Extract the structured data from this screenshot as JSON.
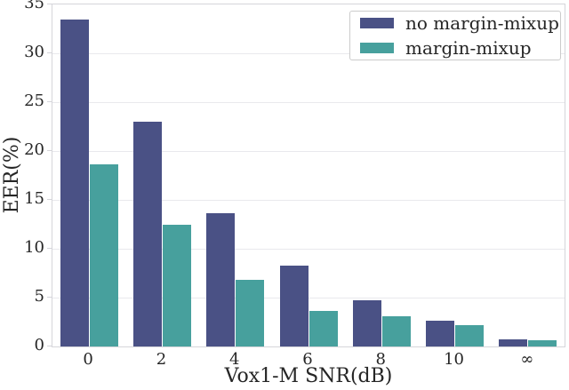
{
  "figure": {
    "background": "#ffffff",
    "grid_color": "#e9e9ed",
    "spine_color": "#d5d5da",
    "text_color": "#262626",
    "legend_border_color": "#cbcbcb"
  },
  "chart_data": {
    "type": "bar",
    "title": "",
    "xlabel": "Vox1-M SNR(dB)",
    "ylabel": "EER(%)",
    "categories": [
      "0",
      "2",
      "4",
      "6",
      "8",
      "10",
      "∞"
    ],
    "series": [
      {
        "name": "no margin-mixup",
        "color": "#4a5185",
        "values": [
          33.5,
          23.0,
          13.6,
          8.3,
          4.7,
          2.6,
          0.7
        ]
      },
      {
        "name": "margin-mixup",
        "color": "#47a09d",
        "values": [
          18.6,
          12.5,
          6.8,
          3.6,
          3.1,
          2.2,
          0.6
        ]
      }
    ],
    "ylim": [
      0,
      35
    ],
    "yticks": [
      0,
      5,
      10,
      15,
      20,
      25,
      30,
      35
    ],
    "grid": "horizontal",
    "legend_position": "upper right"
  }
}
